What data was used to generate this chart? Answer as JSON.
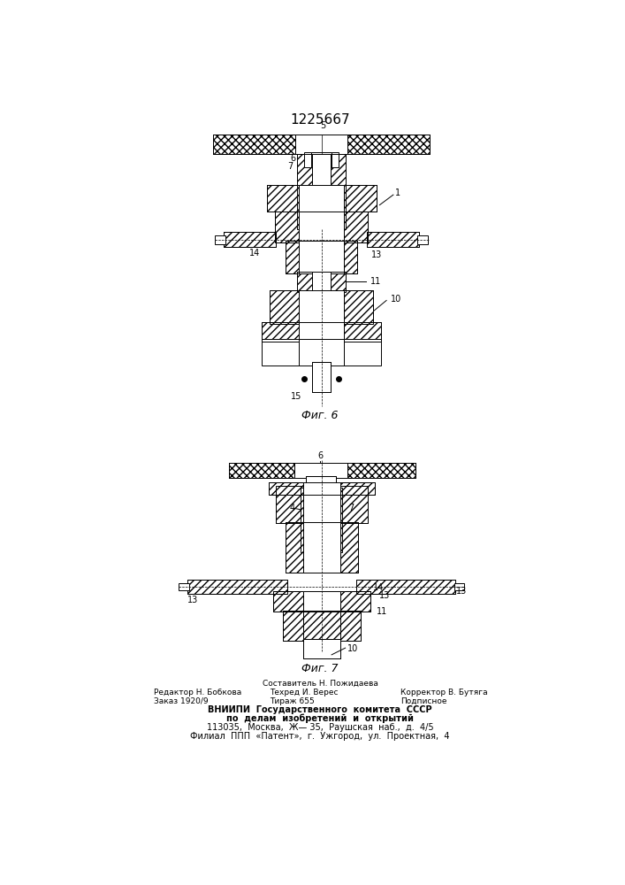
{
  "title": "1225667",
  "fig6_label": "Фиг. 6",
  "fig7_label": "Фиг. 7",
  "background_color": "#ffffff",
  "line_color": "#000000",
  "footer": {
    "author": "Составитель Н. Пожидаева",
    "editor": "Редактор Н. Бобкова",
    "tech": "Техред И. Верес",
    "corrector": "Корректор В. Бутяга",
    "order": "Заказ 1920/9",
    "copies": "Тираж 655",
    "signed": "Подписное",
    "org1": "ВНИИПИ  Государственного  комитета  СССР",
    "org2": "по  делам  изобретений  и  открытий",
    "addr1": "113035,  Москва,  Ж— 35,  Раушская  наб.,  д.  4/5",
    "addr2": "Филиал  ППП  «Патент»,  г.  Ужгород,  ул.  Проектная,  4"
  }
}
